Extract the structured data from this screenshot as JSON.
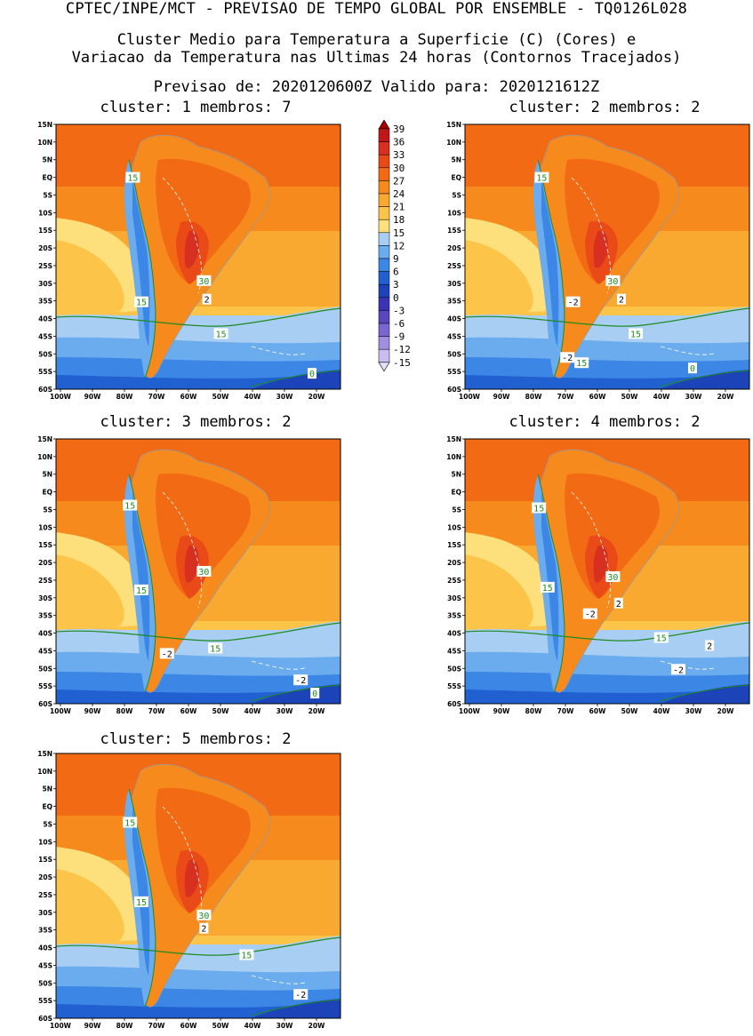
{
  "header": {
    "line1": "CPTEC/INPE/MCT - PREVISAO DE TEMPO GLOBAL POR ENSEMBLE - TQ0126L028",
    "line2": "Cluster Medio para Temperatura a Superficie (C) (Cores) e",
    "line3": "Variacao da Temperatura nas Ultimas 24 horas (Contornos Tracejados)",
    "line4": "Previsao de: 2020120600Z   Valido para: 2020121612Z"
  },
  "panels": [
    {
      "title": "cluster: 1   membros: 7"
    },
    {
      "title": "cluster: 2   membros: 2"
    },
    {
      "title": "cluster: 3   membros: 2"
    },
    {
      "title": "cluster: 4   membros: 2"
    },
    {
      "title": "cluster: 5   membros: 2"
    }
  ],
  "axes": {
    "lat_labels": [
      "15N",
      "10N",
      "5N",
      "EQ",
      "5S",
      "10S",
      "15S",
      "20S",
      "25S",
      "30S",
      "35S",
      "40S",
      "45S",
      "50S",
      "55S",
      "60S"
    ],
    "lon_labels": [
      "100W",
      "90W",
      "80W",
      "70W",
      "60W",
      "50W",
      "40W",
      "30W",
      "20W"
    ]
  },
  "colorbar": {
    "labels": [
      "39",
      "36",
      "33",
      "30",
      "27",
      "24",
      "21",
      "18",
      "15",
      "12",
      "9",
      "6",
      "3",
      "0",
      "-3",
      "-6",
      "-9",
      "-12",
      "-15"
    ],
    "colors": [
      "#a00000",
      "#c01818",
      "#d83020",
      "#ea4a18",
      "#f26a14",
      "#f68a1c",
      "#f9a830",
      "#fcc448",
      "#fde07c",
      "#a8cef4",
      "#6aacee",
      "#3c86e6",
      "#2060d0",
      "#1c44b8",
      "#3a32b4",
      "#5a46c0",
      "#7a66d0",
      "#a08ee0",
      "#c8bcf0",
      "#e6e0f8"
    ]
  },
  "contour_labels": [
    [
      "15",
      "30",
      "2",
      "15",
      "15",
      "0"
    ],
    [
      "15",
      "-2",
      "30",
      "2",
      "15",
      "15",
      "-2",
      "0"
    ],
    [
      "15",
      "30",
      "15",
      "-2",
      "15",
      "-2",
      "0"
    ],
    [
      "15",
      "30",
      "15",
      "2",
      "-2",
      "15",
      "2",
      "-2"
    ],
    [
      "15",
      "30",
      "15",
      "2",
      "15",
      "-2"
    ]
  ],
  "colors": {
    "contour": "#1f8a1f",
    "label_text": "#1f8a1f",
    "land_line": "#9a9a9a"
  }
}
